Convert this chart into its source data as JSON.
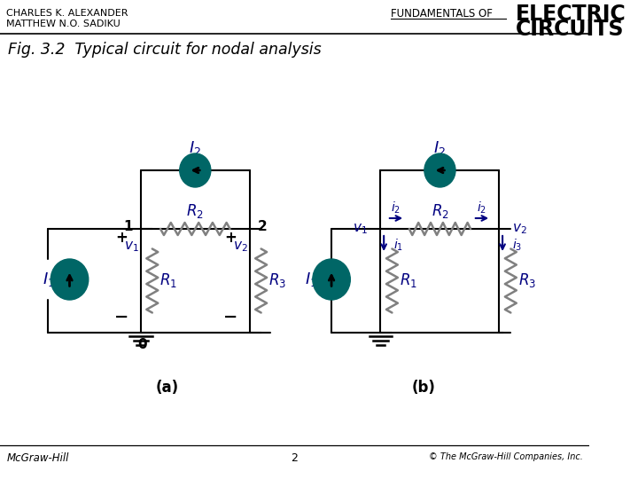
{
  "title": "Fig. 3.2  Typical circuit for nodal analysis",
  "header_left_1": "CHARLES K. ALEXANDER",
  "header_left_2": "MATTHEW N.O. SADIKU",
  "header_right_prefix": "FUNDAMENTALS OF",
  "header_right_bold_1": "ELECTRIC",
  "header_right_bold_2": "CIRCUITS",
  "footer_left": "McGraw-Hill",
  "footer_center": "2",
  "footer_right": "© The McGraw-Hill Companies, Inc.",
  "bg_color": "#ffffff",
  "teal_color": "#006666",
  "circuit_color": "#000080",
  "label_color": "#000080",
  "resistor_color": "#808080",
  "wire_color": "#000000"
}
